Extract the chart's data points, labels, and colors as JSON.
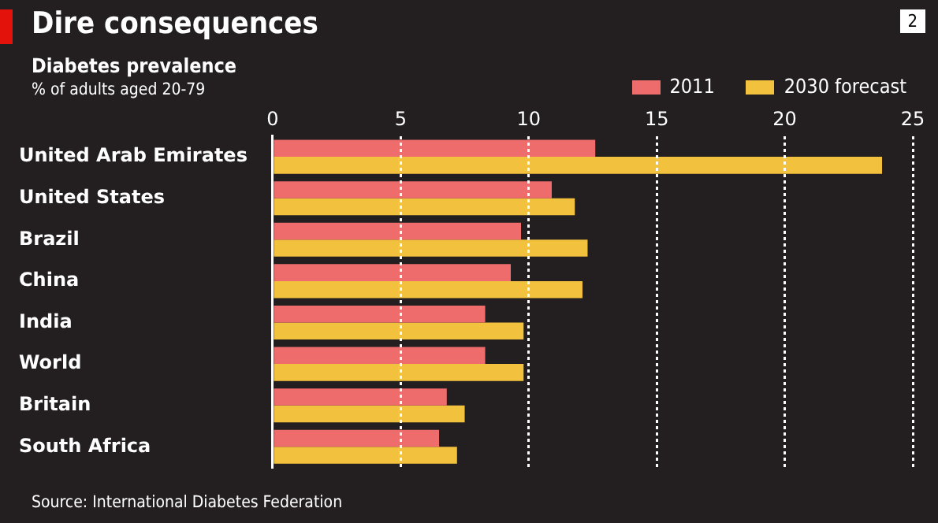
{
  "chart_data": {
    "type": "bar",
    "orientation": "horizontal",
    "title": "Dire consequences",
    "subtitle": "Diabetes prevalence",
    "annotations": [
      "% of adults aged 20-79",
      "Source: International Diabetes Federation",
      "2"
    ],
    "categories": [
      "United Arab Emirates",
      "United States",
      "Brazil",
      "China",
      "India",
      "World",
      "Britain",
      "South Africa"
    ],
    "series": [
      {
        "name": "2011",
        "color": "#ee6c6c",
        "values": [
          12.6,
          10.9,
          9.7,
          9.3,
          8.3,
          8.3,
          6.8,
          6.5
        ]
      },
      {
        "name": "2030 forecast",
        "color": "#f2c13d",
        "values": [
          23.8,
          11.8,
          12.3,
          12.1,
          9.8,
          9.8,
          7.5,
          7.2
        ]
      }
    ],
    "xlim": [
      0,
      25
    ],
    "xticks": [
      0,
      5,
      10,
      15,
      20,
      25
    ],
    "grid": "x",
    "legend": "top right"
  }
}
